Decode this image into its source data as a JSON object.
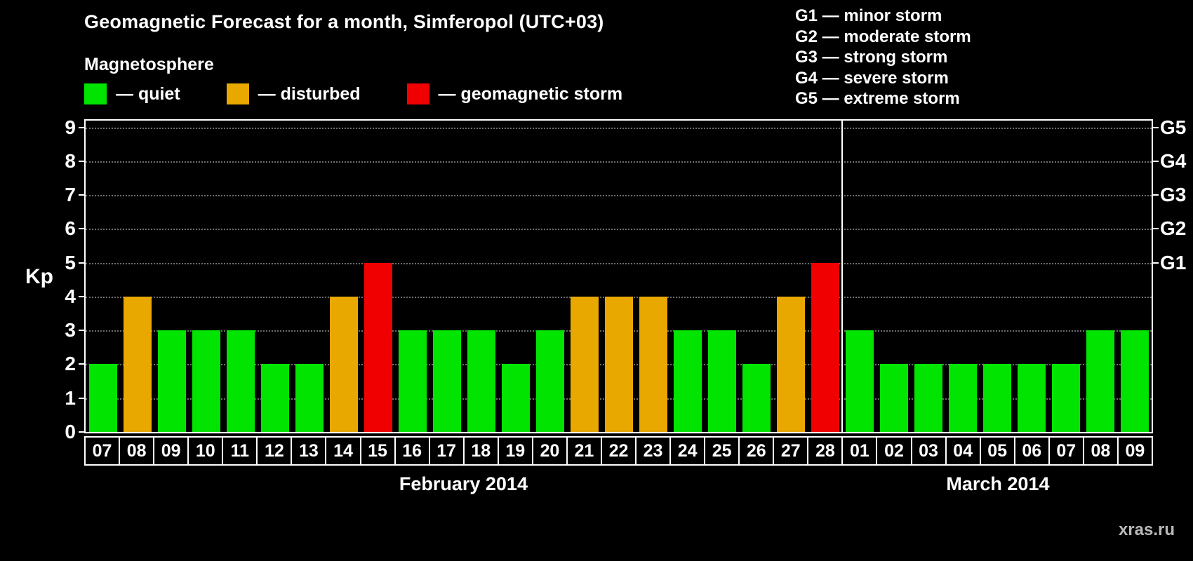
{
  "title": "Geomagnetic Forecast for a month, Simferopol (UTC+03)",
  "legend": {
    "heading": "Magnetosphere",
    "items": [
      {
        "status": "quiet",
        "label": "— quiet",
        "color": "#00e400"
      },
      {
        "status": "disturbed",
        "label": "— disturbed",
        "color": "#e8a800"
      },
      {
        "status": "storm",
        "label": "— geomagnetic storm",
        "color": "#f00000"
      }
    ]
  },
  "g_scale": [
    "G1 — minor storm",
    "G2 — moderate storm",
    "G3 — strong storm",
    "G4 — severe storm",
    "G5 — extreme storm"
  ],
  "watermark": "xras.ru",
  "chart_data": {
    "type": "bar",
    "title": "Geomagnetic Forecast for a month, Simferopol (UTC+03)",
    "ylabel": "Kp",
    "ylim": [
      0,
      9
    ],
    "yticks": [
      0,
      1,
      2,
      3,
      4,
      5,
      6,
      7,
      8,
      9
    ],
    "grid": "dotted horizontal gridlines at each integer Kp",
    "legend_position": "top",
    "right_axis": [
      {
        "label": "G1",
        "value": 5
      },
      {
        "label": "G2",
        "value": 6
      },
      {
        "label": "G3",
        "value": 7
      },
      {
        "label": "G4",
        "value": 8
      },
      {
        "label": "G5",
        "value": 9
      }
    ],
    "status_colors": {
      "quiet": "#00e400",
      "disturbed": "#e8a800",
      "storm": "#f00000"
    },
    "groups": [
      {
        "label": "February 2014",
        "days": [
          "07",
          "08",
          "09",
          "10",
          "11",
          "12",
          "13",
          "14",
          "15",
          "16",
          "17",
          "18",
          "19",
          "20",
          "21",
          "22",
          "23",
          "24",
          "25",
          "26",
          "27",
          "28"
        ],
        "values": [
          2,
          4,
          3,
          3,
          3,
          2,
          2,
          4,
          5,
          3,
          3,
          3,
          2,
          3,
          4,
          4,
          4,
          3,
          3,
          2,
          4,
          5
        ],
        "status": [
          "quiet",
          "disturbed",
          "quiet",
          "quiet",
          "quiet",
          "quiet",
          "quiet",
          "disturbed",
          "storm",
          "quiet",
          "quiet",
          "quiet",
          "quiet",
          "quiet",
          "disturbed",
          "disturbed",
          "disturbed",
          "quiet",
          "quiet",
          "quiet",
          "disturbed",
          "storm"
        ]
      },
      {
        "label": "March 2014",
        "days": [
          "01",
          "02",
          "03",
          "04",
          "05",
          "06",
          "07",
          "08",
          "09"
        ],
        "values": [
          3,
          2,
          2,
          2,
          2,
          2,
          2,
          3,
          3
        ],
        "status": [
          "quiet",
          "quiet",
          "quiet",
          "quiet",
          "quiet",
          "quiet",
          "quiet",
          "quiet",
          "quiet"
        ]
      }
    ]
  }
}
